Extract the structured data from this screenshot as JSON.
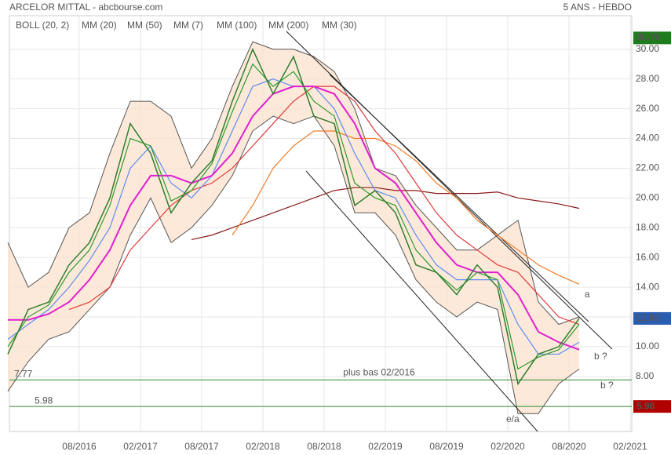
{
  "chart_data": {
    "type": "line",
    "title": "ARCELOR MITTAL - abcbourse.com",
    "subtitle": "5 ANS - HEBDO",
    "x": [
      "2016-01",
      "2016-03",
      "2016-05",
      "2016-07",
      "2016-09",
      "2016-11",
      "2017-01",
      "2017-03",
      "2017-05",
      "2017-07",
      "2017-09",
      "2017-11",
      "2018-01",
      "2018-03",
      "2018-05",
      "2018-07",
      "2018-09",
      "2018-11",
      "2019-01",
      "2019-03",
      "2019-05",
      "2019-07",
      "2019-09",
      "2019-11",
      "2020-01",
      "2020-03",
      "2020-05",
      "2020-07",
      "2020-09"
    ],
    "price": {
      "color": "#2f7d2f",
      "values": [
        9.5,
        12.5,
        13,
        15.5,
        17,
        20,
        25,
        23,
        19,
        21,
        22.5,
        26.5,
        30,
        27,
        29.5,
        25.5,
        25,
        19.5,
        20.5,
        19,
        15.5,
        15,
        13.5,
        15.5,
        14,
        7.5,
        9.5,
        10,
        11.9
      ]
    },
    "bollinger": {
      "name": "BOLL (20, 2)",
      "color": "#fde3cf",
      "upper": [
        17,
        14,
        15,
        18,
        19,
        23,
        26.5,
        26.5,
        25.5,
        22,
        24,
        27.5,
        30.5,
        30,
        30,
        29.5,
        28.5,
        26,
        22,
        21.5,
        19.5,
        18,
        16.5,
        16.5,
        17.5,
        18.5,
        13,
        11.5,
        12
      ],
      "lower": [
        7,
        9,
        10.5,
        11,
        12.5,
        14,
        17.5,
        20,
        17,
        18,
        19.5,
        21.5,
        24.5,
        25.5,
        25,
        25.5,
        23.5,
        19,
        19,
        17.5,
        14.5,
        13,
        12,
        13,
        12.5,
        5.5,
        5.5,
        7.5,
        8.5
      ]
    },
    "series": [
      {
        "name": "MM (20)",
        "color": "#5b8def",
        "values": [
          10.5,
          11.5,
          12.5,
          14,
          15.8,
          18,
          22,
          23.5,
          21,
          20,
          21.5,
          24.5,
          27.5,
          28,
          27.5,
          27.5,
          26,
          23,
          20.5,
          20,
          17.5,
          15.5,
          14.5,
          14.5,
          14.5,
          11.5,
          9.5,
          9.5,
          10.3
        ]
      },
      {
        "name": "MM (50)",
        "color": "#e03a3a",
        "values": [
          null,
          null,
          null,
          12.5,
          13,
          14,
          16.5,
          18,
          19.5,
          20.5,
          21,
          22,
          23.5,
          25,
          26.5,
          27.5,
          27.5,
          26.5,
          24.5,
          23,
          21,
          19,
          17.5,
          16.5,
          15.5,
          15,
          13.5,
          12,
          11.5
        ]
      },
      {
        "name": "MM (7)",
        "color": "#2a9a2a",
        "values": [
          10,
          12,
          12.8,
          15,
          16.5,
          19.5,
          24,
          23.5,
          19.8,
          20.5,
          22.3,
          25.8,
          29,
          27.5,
          28.5,
          26.5,
          25.5,
          21,
          20,
          19.5,
          16.5,
          15,
          13.8,
          15,
          14.5,
          8.5,
          9.3,
          9.8,
          11.5
        ]
      },
      {
        "name": "MM (100)",
        "color": "#f07c2a",
        "values": [
          null,
          null,
          null,
          null,
          null,
          null,
          null,
          null,
          null,
          null,
          null,
          17.5,
          19.5,
          22,
          23.5,
          24.5,
          24.5,
          24,
          24,
          23.5,
          22.5,
          21,
          20,
          18.5,
          17.5,
          16.5,
          15.5,
          14.8,
          14.2
        ]
      },
      {
        "name": "MM (200)",
        "color": "#8b1a1a",
        "values": [
          null,
          null,
          null,
          null,
          null,
          null,
          null,
          null,
          null,
          17.2,
          17.5,
          18,
          18.5,
          19,
          19.5,
          20,
          20.5,
          20.7,
          20.7,
          20.5,
          20.5,
          20.3,
          20.3,
          20.3,
          20.4,
          20,
          19.8,
          19.6,
          19.3
        ]
      },
      {
        "name": "MM (30)",
        "color": "#e020d0",
        "values": [
          11.8,
          11.8,
          12.2,
          13,
          14.5,
          16.5,
          19.5,
          21.5,
          21.5,
          21,
          21.5,
          23,
          25.5,
          27,
          27.5,
          27.5,
          27,
          25,
          22,
          21,
          19,
          17,
          15.5,
          15,
          15,
          13.5,
          11,
          10.3,
          9.8
        ]
      }
    ],
    "ylim": [
      4.3,
      31.2
    ],
    "yticks": [
      {
        "value": 8,
        "label": "8.00"
      },
      {
        "value": 10,
        "label": "10.00"
      },
      {
        "value": 12,
        "label": "12.00"
      },
      {
        "value": 14,
        "label": "14.00"
      },
      {
        "value": 16,
        "label": "16.00"
      },
      {
        "value": 18,
        "label": "18.00"
      },
      {
        "value": 20,
        "label": "20.00"
      },
      {
        "value": 22,
        "label": "22.00"
      },
      {
        "value": 24,
        "label": "24.00"
      },
      {
        "value": 26,
        "label": "26.00"
      },
      {
        "value": 28,
        "label": "28.00"
      },
      {
        "value": 30,
        "label": "30.00"
      }
    ],
    "xlim": [
      "2016-01",
      "2021-02"
    ],
    "xticks": [
      {
        "value": "2016-08",
        "label": "08/2016"
      },
      {
        "value": "2017-02",
        "label": "02/2017"
      },
      {
        "value": "2017-08",
        "label": "08/2017"
      },
      {
        "value": "2018-02",
        "label": "02/2018"
      },
      {
        "value": "2018-08",
        "label": "08/2018"
      },
      {
        "value": "2019-02",
        "label": "02/2019"
      },
      {
        "value": "2019-08",
        "label": "08/2019"
      },
      {
        "value": "2020-02",
        "label": "02/2020"
      },
      {
        "value": "2020-08",
        "label": "08/2020"
      },
      {
        "value": "2021-02",
        "label": "02/2021"
      }
    ],
    "grid": true,
    "price_tags": [
      {
        "value": 30.76,
        "label": "30.76",
        "color": "#1e7b1e"
      },
      {
        "value": 11.9,
        "label": "11.90",
        "color": "#2a5db0"
      },
      {
        "value": 5.98,
        "label": "5.98",
        "color": "#b00000"
      }
    ],
    "levels": [
      {
        "value": 7.77,
        "label": "7.77",
        "text": "plus bas 02/2016",
        "color": "#2e8b2e"
      },
      {
        "value": 5.98,
        "label": "5.98",
        "color": "#2e8b2e"
      }
    ],
    "annotations": [
      {
        "text": "a",
        "color": "#2a3a8a"
      },
      {
        "text": "b ?",
        "color": "#2a3a8a"
      },
      {
        "text": "b ?",
        "color": "#2a3a8a"
      },
      {
        "text": "e/a",
        "color": "#a01010"
      }
    ]
  }
}
